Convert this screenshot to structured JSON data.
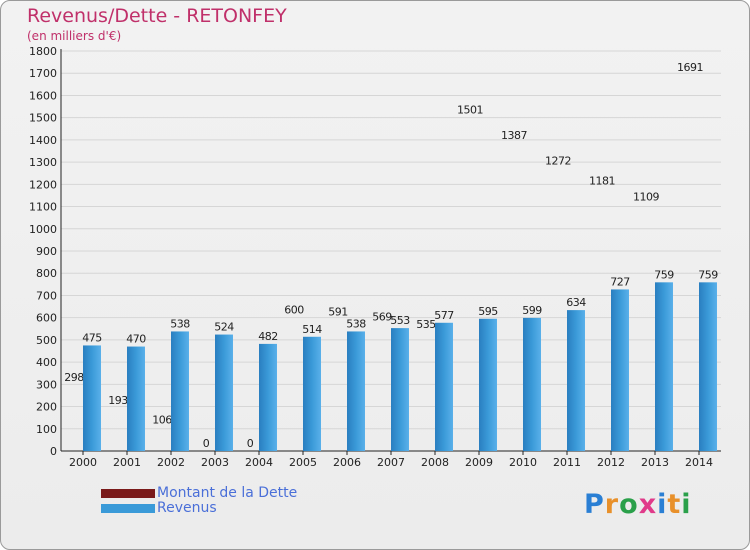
{
  "title": "Revenus/Dette - RETONFEY",
  "subtitle": "(en milliers d'€)",
  "colors": {
    "debt": "#7a1a1a",
    "revenue": "#3a9ad8",
    "title": "#c0306a",
    "legend_text": "#4a6fd8"
  },
  "legend": {
    "debt_label": "Montant de la Dette",
    "revenue_label": "Revenus"
  },
  "logo": {
    "letters": [
      "P",
      "r",
      "o",
      "x",
      "i",
      "t",
      "i"
    ],
    "colors": [
      "#2a7fd4",
      "#e8902a",
      "#2aa04a",
      "#e03a8a",
      "#2a7fd4",
      "#e8902a",
      "#2aa04a"
    ]
  },
  "chart_data": {
    "type": "bar",
    "categories": [
      "2000",
      "2001",
      "2002",
      "2003",
      "2004",
      "2005",
      "2006",
      "2007",
      "2008",
      "2009",
      "2010",
      "2011",
      "2012",
      "2013",
      "2014"
    ],
    "series": [
      {
        "name": "Montant de la Dette",
        "values": [
          298,
          193,
          106,
          0,
          0,
          600,
          591,
          569,
          535,
          1501,
          1387,
          1272,
          1181,
          1109,
          1691
        ]
      },
      {
        "name": "Revenus",
        "values": [
          475,
          470,
          538,
          524,
          482,
          514,
          538,
          553,
          577,
          595,
          599,
          634,
          727,
          759,
          759
        ]
      }
    ],
    "ylim": [
      0,
      1800
    ],
    "yticks": [
      0,
      100,
      200,
      300,
      400,
      500,
      600,
      700,
      800,
      900,
      1000,
      1100,
      1200,
      1300,
      1400,
      1500,
      1600,
      1700,
      1800
    ],
    "grid": true,
    "legend_position": "bottom-left"
  }
}
